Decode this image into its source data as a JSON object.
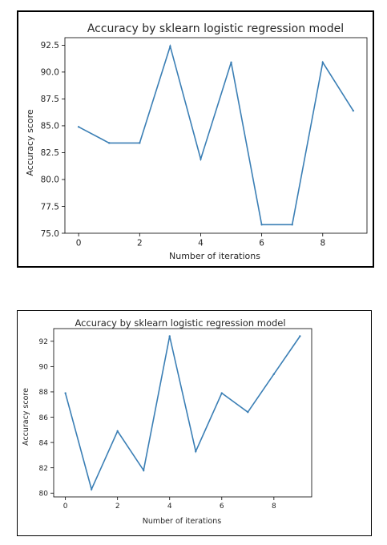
{
  "chart_data": [
    {
      "type": "line",
      "title": "Accuracy by sklearn logistic regression model",
      "xlabel": "Number of iterations",
      "ylabel": "Accuracy score",
      "x": [
        0,
        1,
        2,
        3,
        4,
        5,
        6,
        7,
        8,
        9
      ],
      "series": [
        {
          "values": [
            84.9,
            83.4,
            83.4,
            92.4,
            81.9,
            90.9,
            75.8,
            75.8,
            90.9,
            86.4
          ]
        }
      ],
      "xlim": [
        -0.45,
        9.45
      ],
      "ylim": [
        75.0,
        93.2
      ],
      "xticks": [
        0,
        2,
        4,
        6,
        8
      ],
      "xtick_labels": [
        "0",
        "2",
        "4",
        "6",
        "8"
      ],
      "yticks": [
        75.0,
        77.5,
        80.0,
        82.5,
        85.0,
        87.5,
        90.0,
        92.5
      ],
      "ytick_labels": [
        "75.0",
        "77.5",
        "80.0",
        "82.5",
        "85.0",
        "87.5",
        "90.0",
        "92.5"
      ],
      "grid": false,
      "line_color": "#3b7fb5"
    },
    {
      "type": "line",
      "title": "Accuracy by sklearn logistic regression model",
      "xlabel": "Number of iterations",
      "ylabel": "Accuracy score",
      "x": [
        0,
        1,
        2,
        3,
        4,
        5,
        6,
        7,
        8,
        9
      ],
      "series": [
        {
          "values": [
            87.9,
            80.3,
            84.9,
            81.8,
            92.4,
            83.3,
            87.9,
            86.4,
            89.4,
            92.4
          ]
        }
      ],
      "xlim": [
        -0.45,
        9.45
      ],
      "ylim": [
        79.7,
        93.0
      ],
      "xticks": [
        0,
        2,
        4,
        6,
        8
      ],
      "xtick_labels": [
        "0",
        "2",
        "4",
        "6",
        "8"
      ],
      "yticks": [
        80,
        82,
        84,
        86,
        88,
        90,
        92
      ],
      "ytick_labels": [
        "80",
        "82",
        "84",
        "86",
        "88",
        "90",
        "92"
      ],
      "grid": false,
      "line_color": "#3b7fb5"
    }
  ]
}
